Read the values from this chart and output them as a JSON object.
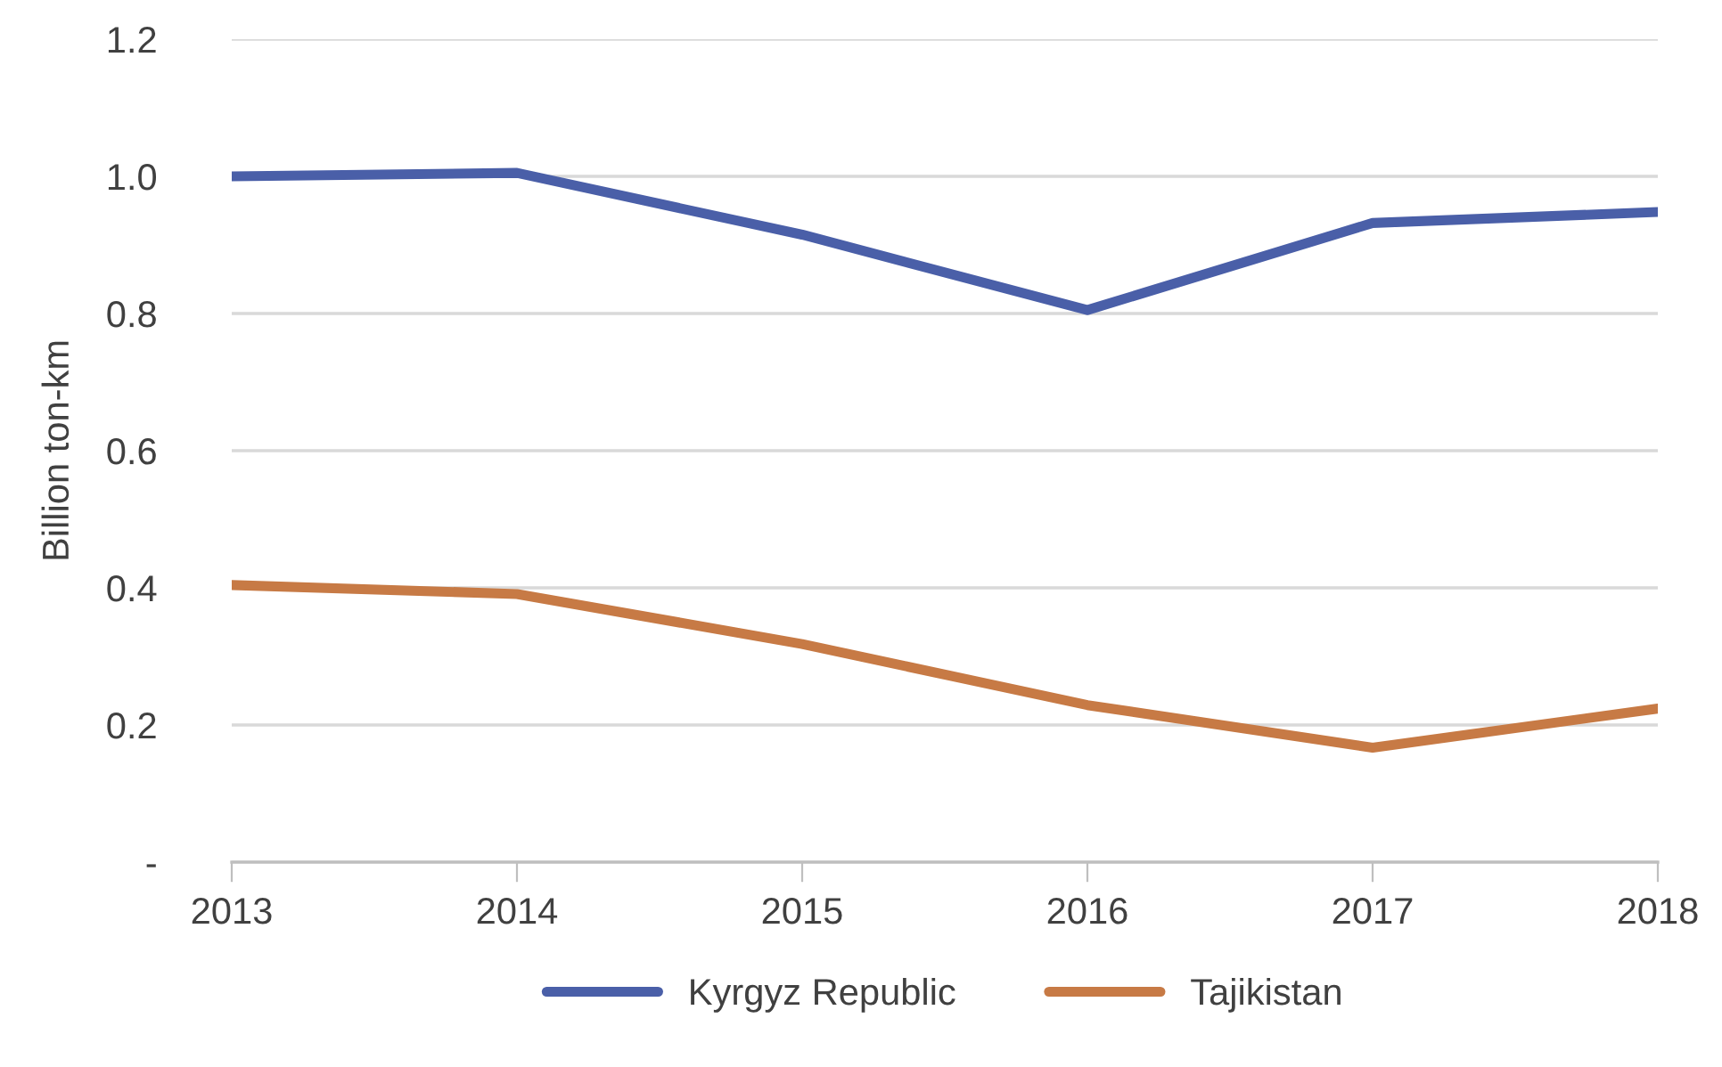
{
  "chart_data": {
    "type": "line",
    "ylabel": "Billion ton-km",
    "categories": [
      "2013",
      "2014",
      "2015",
      "2016",
      "2017",
      "2018"
    ],
    "series": [
      {
        "name": "Kyrgyz Republic",
        "color": "#4a5fa8",
        "values": [
          1.0,
          1.005,
          0.915,
          0.805,
          0.932,
          0.948
        ]
      },
      {
        "name": "Tajikistan",
        "color": "#c77a45",
        "values": [
          0.404,
          0.391,
          0.318,
          0.229,
          0.167,
          0.224
        ]
      }
    ],
    "ylim": [
      0,
      1.2
    ],
    "yticks": [
      {
        "value": 0,
        "label": "-"
      },
      0.2,
      0.4,
      0.6,
      0.8,
      {
        "value": 1.0,
        "label": "1.0"
      },
      1.2
    ],
    "grid": "y",
    "legend": "bottom",
    "marker": "none",
    "line_style": "solid"
  }
}
